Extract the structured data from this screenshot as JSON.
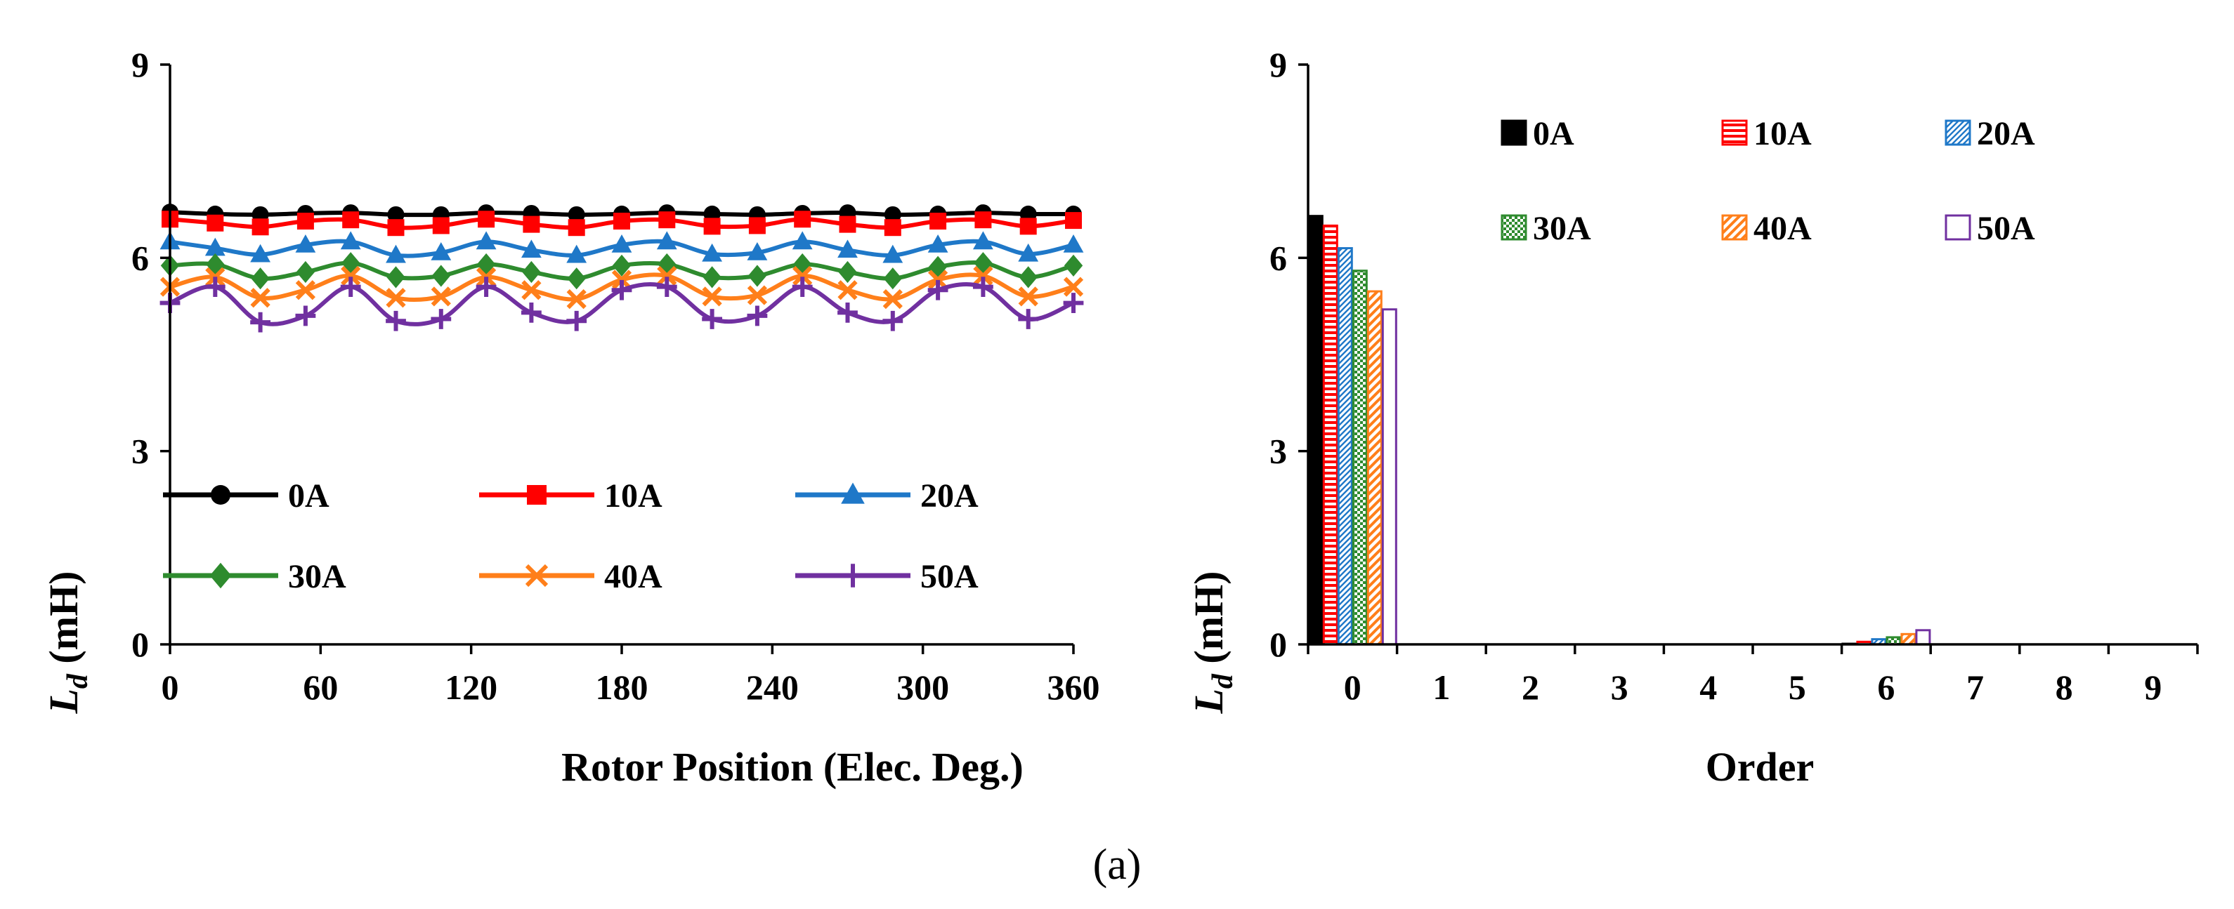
{
  "chart_data": [
    {
      "type": "line",
      "xlabel": "Rotor Position (Elec. Deg.)",
      "ylabel": {
        "symbol": "L",
        "subscript": "d",
        "unit": " (mH)"
      },
      "xlim": [
        0,
        360
      ],
      "ylim": [
        0,
        9
      ],
      "xticks": [
        "0",
        "60",
        "120",
        "180",
        "240",
        "300",
        "360"
      ],
      "xtick_values": [
        0,
        60,
        120,
        180,
        240,
        300,
        360
      ],
      "yticks": [
        "0",
        "3",
        "6",
        "9"
      ],
      "ytick_values": [
        0,
        3,
        6,
        9
      ],
      "grid": false,
      "legend": "bottom, inside, 2 rows x 3 columns",
      "x": [
        0,
        18,
        36,
        54,
        72,
        90,
        108,
        126,
        144,
        162,
        180,
        198,
        216,
        234,
        252,
        270,
        288,
        306,
        324,
        342,
        360
      ],
      "series": [
        {
          "name": "0A",
          "color": "#000000",
          "marker": "circle",
          "values": [
            6.71,
            6.68,
            6.67,
            6.69,
            6.7,
            6.67,
            6.67,
            6.7,
            6.69,
            6.67,
            6.68,
            6.7,
            6.68,
            6.67,
            6.69,
            6.7,
            6.67,
            6.68,
            6.7,
            6.68,
            6.68
          ]
        },
        {
          "name": "10A",
          "color": "#ff0000",
          "marker": "square",
          "values": [
            6.6,
            6.54,
            6.48,
            6.57,
            6.59,
            6.47,
            6.5,
            6.6,
            6.52,
            6.47,
            6.57,
            6.59,
            6.49,
            6.5,
            6.6,
            6.52,
            6.47,
            6.57,
            6.59,
            6.49,
            6.58
          ]
        },
        {
          "name": "20A",
          "color": "#1f78c8",
          "marker": "triangle",
          "values": [
            6.25,
            6.15,
            6.05,
            6.2,
            6.25,
            6.04,
            6.08,
            6.25,
            6.12,
            6.04,
            6.2,
            6.25,
            6.06,
            6.08,
            6.25,
            6.12,
            6.04,
            6.2,
            6.25,
            6.06,
            6.2
          ]
        },
        {
          "name": "30A",
          "color": "#2e8b2e",
          "marker": "diamond",
          "values": [
            5.88,
            5.9,
            5.68,
            5.78,
            5.92,
            5.7,
            5.72,
            5.9,
            5.78,
            5.68,
            5.88,
            5.9,
            5.7,
            5.72,
            5.9,
            5.78,
            5.68,
            5.86,
            5.92,
            5.7,
            5.88
          ]
        },
        {
          "name": "40A",
          "color": "#ff7f1a",
          "marker": "x",
          "values": [
            5.55,
            5.7,
            5.38,
            5.5,
            5.72,
            5.38,
            5.4,
            5.7,
            5.5,
            5.36,
            5.66,
            5.72,
            5.4,
            5.42,
            5.72,
            5.5,
            5.36,
            5.66,
            5.72,
            5.4,
            5.55
          ]
        },
        {
          "name": "50A",
          "color": "#7030a0",
          "marker": "plus",
          "values": [
            5.3,
            5.55,
            5.0,
            5.1,
            5.55,
            5.02,
            5.05,
            5.55,
            5.15,
            5.02,
            5.5,
            5.55,
            5.05,
            5.1,
            5.55,
            5.15,
            5.02,
            5.5,
            5.55,
            5.05,
            5.3
          ]
        }
      ]
    },
    {
      "type": "bar",
      "xlabel": "Order",
      "ylabel": {
        "symbol": "L",
        "subscript": "d",
        "unit": " (mH)"
      },
      "ylim": [
        0,
        9
      ],
      "yticks": [
        "0",
        "3",
        "6",
        "9"
      ],
      "ytick_values": [
        0,
        3,
        6,
        9
      ],
      "categories": [
        "0",
        "1",
        "2",
        "3",
        "4",
        "5",
        "6",
        "7",
        "8",
        "9"
      ],
      "grid": false,
      "legend": "top, inside, 2 rows x 3 columns",
      "series": [
        {
          "name": "0A",
          "color": "#000000",
          "pattern": "solid",
          "values": [
            6.65,
            0,
            0,
            0,
            0,
            0,
            0.01,
            0,
            0,
            0
          ]
        },
        {
          "name": "10A",
          "color": "#ff0000",
          "pattern": "hstripe",
          "values": [
            6.5,
            0,
            0,
            0,
            0,
            0,
            0.04,
            0,
            0,
            0
          ]
        },
        {
          "name": "20A",
          "color": "#1f78c8",
          "pattern": "diag",
          "values": [
            6.15,
            0,
            0,
            0,
            0,
            0,
            0.08,
            0,
            0,
            0
          ]
        },
        {
          "name": "30A",
          "color": "#2e8b2e",
          "pattern": "check",
          "values": [
            5.8,
            0,
            0,
            0,
            0,
            0,
            0.11,
            0,
            0,
            0
          ]
        },
        {
          "name": "40A",
          "color": "#ff7f1a",
          "pattern": "diagbig",
          "values": [
            5.48,
            0,
            0,
            0,
            0,
            0,
            0.16,
            0,
            0,
            0
          ]
        },
        {
          "name": "50A",
          "color": "#7030a0",
          "pattern": "hollow",
          "values": [
            5.2,
            0,
            0,
            0,
            0,
            0,
            0.22,
            0,
            0,
            0
          ]
        }
      ]
    }
  ],
  "caption": "(a)"
}
